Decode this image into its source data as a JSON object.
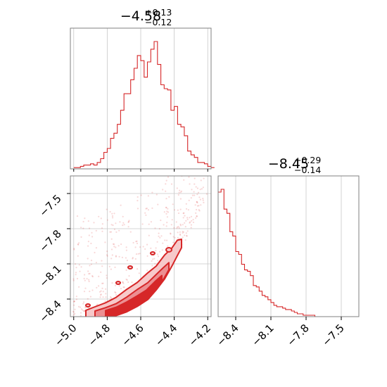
{
  "colors": {
    "accent": "#d62728",
    "frame": "#808080",
    "grid": "#c8c8c8",
    "contour_fill": "#f0a0a2"
  },
  "chart_data": [
    {
      "type": "histogram",
      "panel": "top-left",
      "title": {
        "value": "−4.58",
        "upper": "+0.13",
        "lower": "−0.12"
      },
      "xlim": [
        -5.02,
        -4.18
      ],
      "grid": true,
      "bin_edges_start": -5.0,
      "bin_width": 0.02,
      "values": [
        1,
        1,
        2,
        3,
        3,
        4,
        3,
        5,
        8,
        13,
        16,
        24,
        28,
        35,
        46,
        59,
        59,
        70,
        79,
        89,
        85,
        72,
        84,
        94,
        100,
        82,
        66,
        63,
        62,
        46,
        49,
        35,
        33,
        26,
        14,
        11,
        9,
        5,
        5,
        4,
        2,
        1
      ]
    },
    {
      "type": "histogram",
      "panel": "bottom-right",
      "title": {
        "value": "−8.45",
        "upper": "+0.29",
        "lower": "−0.14"
      },
      "xlim": [
        -8.55,
        -7.35
      ],
      "grid": true,
      "bin_edges_start": -8.55,
      "bin_width": 0.025,
      "values": [
        88,
        90,
        76,
        73,
        60,
        57,
        46,
        44,
        37,
        33,
        32,
        29,
        22,
        21,
        18,
        15,
        14,
        12,
        10,
        8,
        7,
        7,
        6,
        5,
        5,
        4,
        3,
        2,
        2,
        1,
        1,
        1,
        1,
        0,
        0,
        0,
        0,
        0,
        0,
        0,
        0,
        0,
        0,
        0,
        0,
        0,
        0,
        0
      ]
    },
    {
      "type": "scatter",
      "panel": "bottom-left",
      "xlim": [
        -5.02,
        -4.18
      ],
      "ylim": [
        -8.55,
        -7.35
      ],
      "grid": true,
      "contours": "filled density contours following a curved ridge",
      "ridge": [
        {
          "x": -4.86,
          "y": -8.52
        },
        {
          "x": -4.76,
          "y": -8.5
        },
        {
          "x": -4.66,
          "y": -8.45
        },
        {
          "x": -4.56,
          "y": -8.36
        },
        {
          "x": -4.48,
          "y": -8.23
        },
        {
          "x": -4.42,
          "y": -8.1
        },
        {
          "x": -4.38,
          "y": -7.99
        },
        {
          "x": -4.33,
          "y": -7.88
        }
      ]
    }
  ],
  "axes": {
    "x1_ticks": [
      "−5.0",
      "−4.8",
      "−4.6",
      "−4.4",
      "−4.2"
    ],
    "x1_tick_values": [
      -5.0,
      -4.8,
      -4.6,
      -4.4,
      -4.2
    ],
    "y2_ticks": [
      "−7.5",
      "−7.8",
      "−8.1",
      "−8.4"
    ],
    "y2_tick_values": [
      -7.5,
      -7.8,
      -8.1,
      -8.4
    ],
    "x2_ticks": [
      "−8.4",
      "−8.1",
      "−7.8",
      "−7.5"
    ],
    "x2_tick_values": [
      -8.4,
      -8.1,
      -7.8,
      -7.5
    ]
  }
}
